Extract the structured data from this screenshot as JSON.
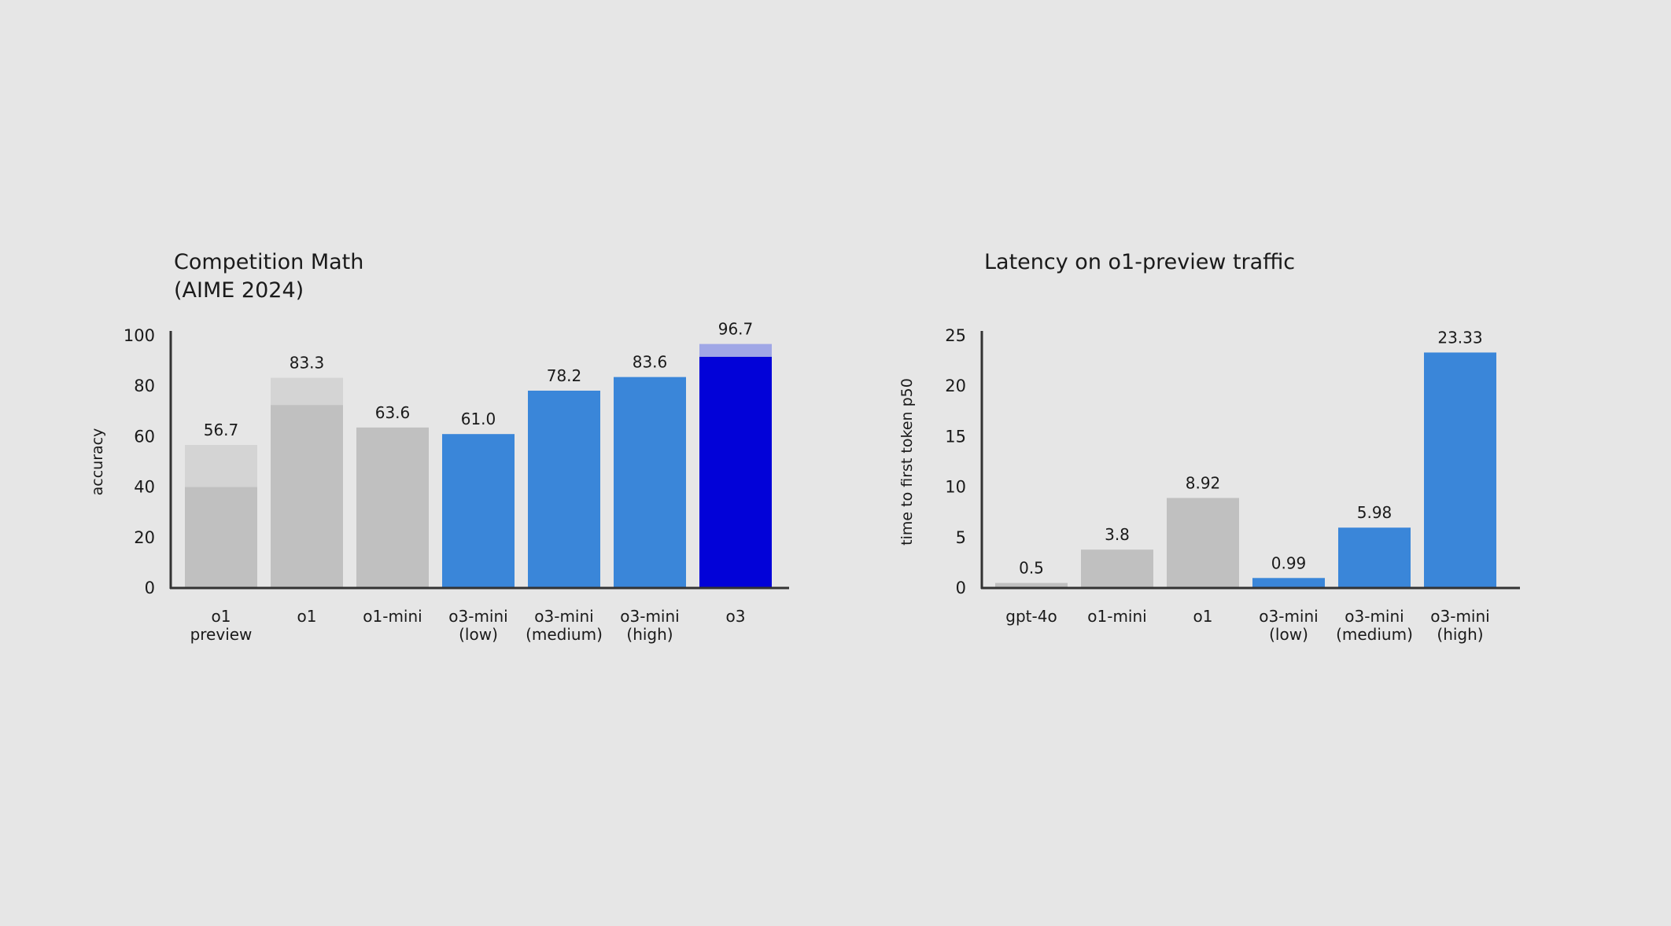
{
  "colors": {
    "background": "#e6e6e6",
    "axis": "#333333",
    "gray": "#c0c0c0",
    "gray_light": "#d4d4d4",
    "blue": "#3a86d9",
    "dark_blue": "#0202d8",
    "light_purple": "#a0a7e6"
  },
  "chart_data": [
    {
      "type": "bar",
      "title": [
        "Competition Math",
        "(AIME 2024)"
      ],
      "ylabel": "accuracy",
      "xlabel": "",
      "ylim": [
        0,
        100
      ],
      "yticks": [
        0,
        20,
        40,
        60,
        80,
        100
      ],
      "grid": false,
      "categories": [
        [
          "o1",
          "preview"
        ],
        [
          "o1"
        ],
        [
          "o1-mini"
        ],
        [
          "o3-mini",
          "(low)"
        ],
        [
          "o3-mini",
          "(medium)"
        ],
        [
          "o3-mini",
          "(high)"
        ],
        [
          "o3"
        ]
      ],
      "bars": [
        {
          "value": 56.7,
          "label": "56.7",
          "inner": 40.0,
          "color": "gray_light",
          "inner_color": "gray"
        },
        {
          "value": 83.3,
          "label": "83.3",
          "inner": 72.5,
          "color": "gray_light",
          "inner_color": "gray"
        },
        {
          "value": 63.6,
          "label": "63.6",
          "color": "gray"
        },
        {
          "value": 61.0,
          "label": "61.0",
          "color": "blue"
        },
        {
          "value": 78.2,
          "label": "78.2",
          "color": "blue"
        },
        {
          "value": 83.6,
          "label": "83.6",
          "color": "blue"
        },
        {
          "value": 96.7,
          "label": "96.7",
          "inner": 91.6,
          "color": "light_purple",
          "inner_color": "dark_blue"
        }
      ]
    },
    {
      "type": "bar",
      "title": [
        "Latency on o1-preview traffic"
      ],
      "ylabel": "time to first token p50",
      "xlabel": "",
      "ylim": [
        0,
        25
      ],
      "yticks": [
        0,
        5,
        10,
        15,
        20,
        25
      ],
      "grid": false,
      "categories": [
        [
          "gpt-4o"
        ],
        [
          "o1-mini"
        ],
        [
          "o1"
        ],
        [
          "o3-mini",
          "(low)"
        ],
        [
          "o3-mini",
          "(medium)"
        ],
        [
          "o3-mini",
          "(high)"
        ]
      ],
      "bars": [
        {
          "value": 0.5,
          "label": "0.5",
          "color": "gray"
        },
        {
          "value": 3.8,
          "label": "3.8",
          "color": "gray"
        },
        {
          "value": 8.92,
          "label": "8.92",
          "color": "gray"
        },
        {
          "value": 0.99,
          "label": "0.99",
          "color": "blue"
        },
        {
          "value": 5.98,
          "label": "5.98",
          "color": "blue"
        },
        {
          "value": 23.33,
          "label": "23.33",
          "color": "blue"
        }
      ]
    }
  ]
}
